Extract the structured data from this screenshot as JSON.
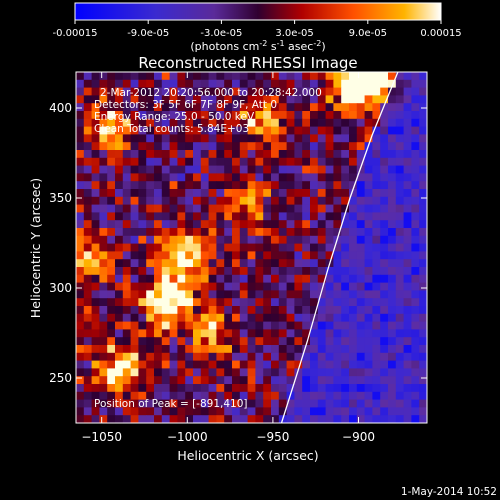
{
  "colorbar": {
    "tick_labels": [
      "-0.00015",
      "-9.0e-05",
      "-3.0e-05",
      "3.0e-05",
      "9.0e-05",
      "0.00015"
    ],
    "tick_values": [
      -0.00015,
      -9e-05,
      -3e-05,
      3e-05,
      9e-05,
      0.00015
    ],
    "unit_prefix": "(photons cm",
    "unit_exp1": "-2",
    "unit_mid": " s",
    "unit_exp2": "-1",
    "unit_mid2": " asec",
    "unit_exp3": "-2",
    "unit_suffix": ")",
    "range": [
      -0.00015,
      0.00015
    ]
  },
  "chart_data": {
    "type": "heatmap",
    "title": "Reconstructed RHESSI Image",
    "xlabel": "Heliocentric X (arcsec)",
    "ylabel": "Heliocentric Y (arcsec)",
    "xlim": [
      -1065,
      -860
    ],
    "ylim": [
      225,
      420
    ],
    "x_ticks": [
      -1050,
      -1000,
      -950,
      -900
    ],
    "x_tick_labels": [
      "−1050",
      "−1000",
      "−950",
      "−900"
    ],
    "y_ticks": [
      250,
      300,
      350,
      400
    ],
    "y_tick_labels": [
      "250",
      "300",
      "350",
      "400"
    ],
    "limb_curve": [
      [
        -945,
        225
      ],
      [
        -930,
        270
      ],
      [
        -918,
        310
      ],
      [
        -905,
        350
      ],
      [
        -892,
        385
      ],
      [
        -877,
        420
      ]
    ],
    "hot_regions": [
      {
        "x": -1012,
        "y": 292,
        "strength": 1.0
      },
      {
        "x": -1003,
        "y": 318,
        "strength": 0.9
      },
      {
        "x": -1040,
        "y": 255,
        "strength": 0.8
      },
      {
        "x": -1046,
        "y": 390,
        "strength": 0.7
      },
      {
        "x": -905,
        "y": 415,
        "strength": 0.9
      },
      {
        "x": -888,
        "y": 412,
        "strength": 0.75
      },
      {
        "x": -955,
        "y": 395,
        "strength": 0.6
      },
      {
        "x": -985,
        "y": 275,
        "strength": 0.55
      },
      {
        "x": -965,
        "y": 345,
        "strength": 0.5
      },
      {
        "x": -1055,
        "y": 315,
        "strength": 0.55
      }
    ],
    "annotations": {
      "time_range": "2-Mar-2012 20:20:56.000 to 20:28:42.000",
      "detectors": "Detectors: 3F 5F 6F 7F 8F 9F, Att 0",
      "energy": "Energy Range: 25.0 - 50.0 keV",
      "clean": "Clean     Total counts: 5.84E+03",
      "peak": "Position of Peak = [-891,410]"
    }
  },
  "footer": {
    "date": "1-May-2014 10:52"
  }
}
